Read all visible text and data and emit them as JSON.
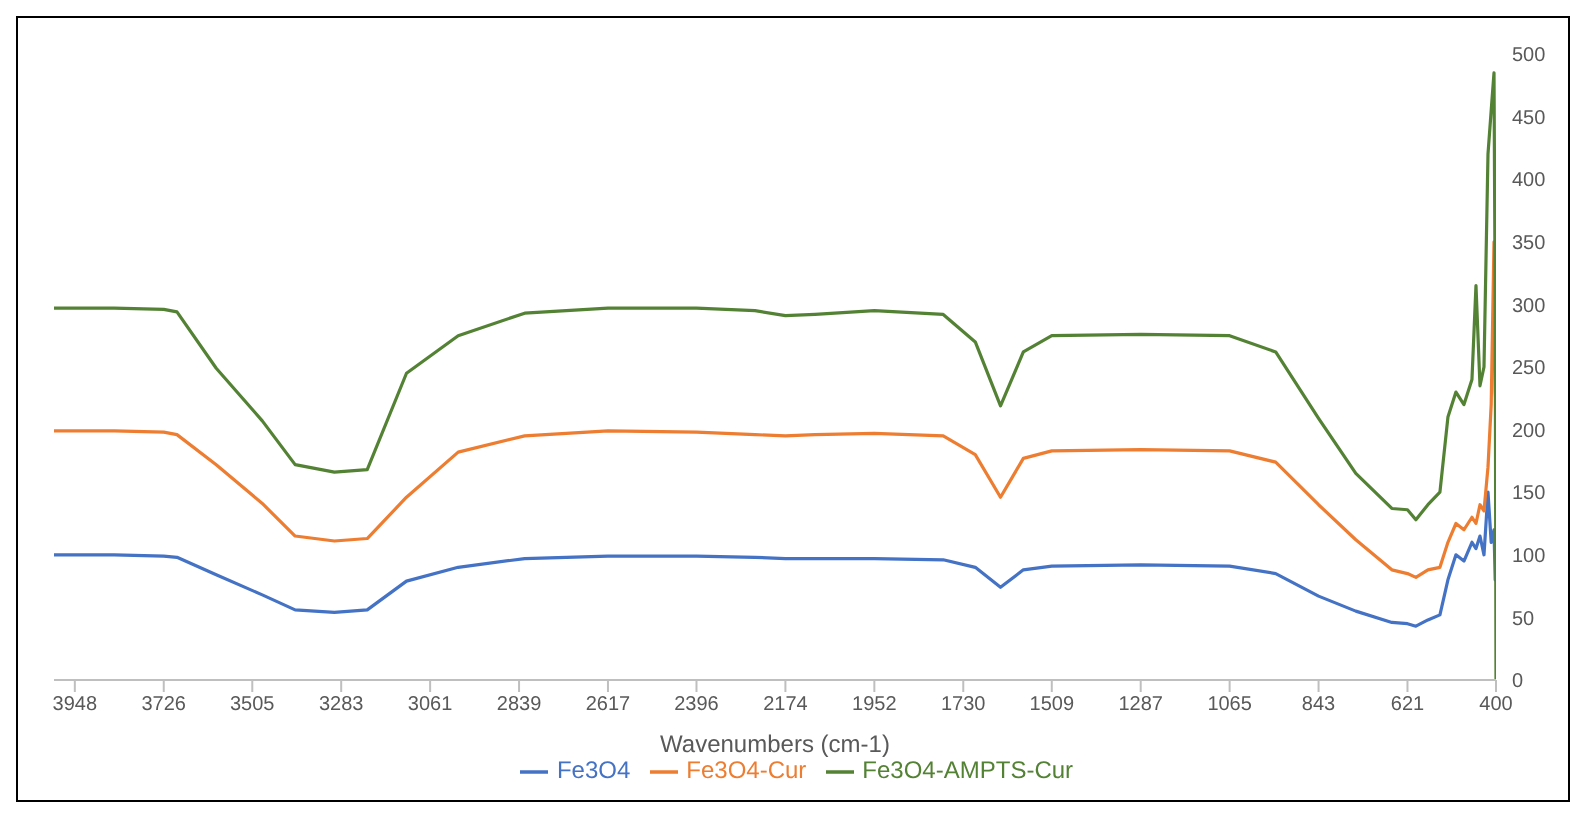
{
  "chart_data": {
    "type": "line",
    "xlabel": "Wavenumbers (cm-1)",
    "x": [
      4000,
      3850,
      3726,
      3693,
      3595,
      3480,
      3398,
      3300,
      3218,
      3120,
      2991,
      2825,
      2617,
      2396,
      2250,
      2174,
      2100,
      1952,
      1780,
      1700,
      1637,
      1580,
      1509,
      1287,
      1065,
      950,
      843,
      750,
      660,
      621,
      600,
      570,
      540,
      520,
      500,
      480,
      460,
      450,
      440,
      430,
      420,
      412,
      405,
      402,
      400
    ],
    "series": [
      {
        "name": "Fe3O4",
        "color": "#4472c4",
        "values": [
          100,
          100,
          99,
          98,
          84,
          68,
          56,
          54,
          56,
          79,
          90,
          97,
          99,
          99,
          98,
          97,
          97,
          97,
          96,
          90,
          74,
          88,
          91,
          92,
          91,
          85,
          67,
          55,
          46,
          45,
          43,
          48,
          52,
          80,
          100,
          95,
          110,
          105,
          115,
          100,
          150,
          110,
          120,
          80,
          80
        ]
      },
      {
        "name": "Fe3O4-Cur",
        "color": "#ed7d31",
        "values": [
          199,
          199,
          198,
          196,
          172,
          141,
          115,
          111,
          113,
          146,
          182,
          195,
          199,
          198,
          196,
          195,
          196,
          197,
          195,
          180,
          146,
          177,
          183,
          184,
          183,
          174,
          140,
          112,
          88,
          85,
          82,
          88,
          90,
          110,
          125,
          120,
          130,
          125,
          140,
          135,
          170,
          220,
          350,
          230,
          220
        ]
      },
      {
        "name": "Fe3O4-AMPTS-Cur",
        "color": "#548235",
        "values": [
          297,
          297,
          296,
          294,
          249,
          207,
          172,
          166,
          168,
          245,
          275,
          293,
          297,
          297,
          295,
          291,
          292,
          295,
          292,
          270,
          219,
          262,
          275,
          276,
          275,
          262,
          209,
          165,
          137,
          136,
          128,
          140,
          150,
          210,
          230,
          220,
          240,
          315,
          235,
          250,
          420,
          455,
          485,
          300,
          0
        ]
      }
    ],
    "xlim": [
      4000,
      400
    ],
    "xticks": [
      3948,
      3726,
      3505,
      3283,
      3061,
      2839,
      2617,
      2396,
      2174,
      1952,
      1730,
      1509,
      1287,
      1065,
      843,
      621,
      400
    ],
    "ylim": [
      0,
      500
    ],
    "yticks": [
      0,
      50,
      100,
      150,
      200,
      250,
      300,
      350,
      400,
      450,
      500
    ],
    "legend": "bottom"
  }
}
